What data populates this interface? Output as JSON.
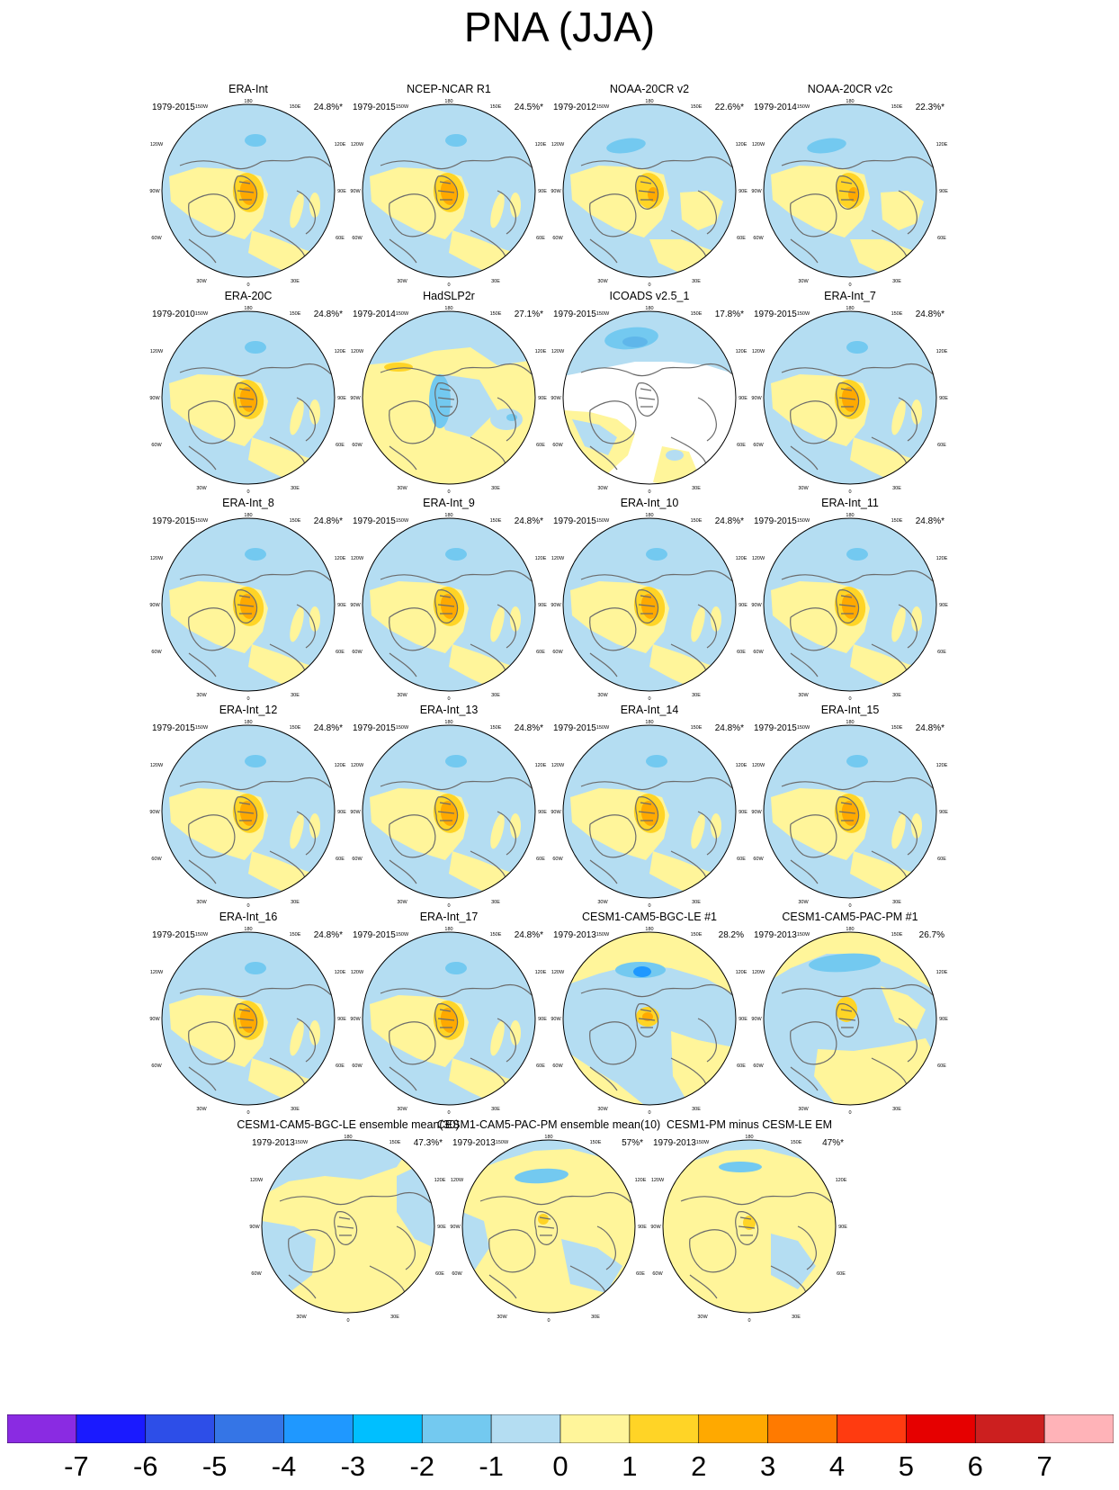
{
  "title": "PNA (JJA)",
  "lon_labels": {
    "north": "180",
    "nnw": "150W",
    "nne": "150E",
    "wnw": "120W",
    "ene": "120E",
    "west": "90W",
    "east": "90E",
    "wsw": "60W",
    "ese": "60E",
    "ssw": "30W",
    "sse": "30E",
    "south": "0"
  },
  "panels": [
    {
      "title": "ERA-Int",
      "period": "1979-2015",
      "variance": "24.8%*",
      "style": "era"
    },
    {
      "title": "NCEP-NCAR R1",
      "period": "1979-2015",
      "variance": "24.5%*",
      "style": "era"
    },
    {
      "title": "NOAA-20CR v2",
      "period": "1979-2012",
      "variance": "22.6%*",
      "style": "noaa"
    },
    {
      "title": "NOAA-20CR v2c",
      "period": "1979-2014",
      "variance": "22.3%*",
      "style": "noaa"
    },
    {
      "title": "ERA-20C",
      "period": "1979-2010",
      "variance": "24.8%*",
      "style": "era"
    },
    {
      "title": "HadSLP2r",
      "period": "1979-2014",
      "variance": "27.1%*",
      "style": "had"
    },
    {
      "title": "ICOADS v2.5_1",
      "period": "1979-2015",
      "variance": "17.8%*",
      "style": "icoads"
    },
    {
      "title": "ERA-Int_7",
      "period": "1979-2015",
      "variance": "24.8%*",
      "style": "era"
    },
    {
      "title": "ERA-Int_8",
      "period": "1979-2015",
      "variance": "24.8%*",
      "style": "era"
    },
    {
      "title": "ERA-Int_9",
      "period": "1979-2015",
      "variance": "24.8%*",
      "style": "era"
    },
    {
      "title": "ERA-Int_10",
      "period": "1979-2015",
      "variance": "24.8%*",
      "style": "era"
    },
    {
      "title": "ERA-Int_11",
      "period": "1979-2015",
      "variance": "24.8%*",
      "style": "era"
    },
    {
      "title": "ERA-Int_12",
      "period": "1979-2015",
      "variance": "24.8%*",
      "style": "era"
    },
    {
      "title": "ERA-Int_13",
      "period": "1979-2015",
      "variance": "24.8%*",
      "style": "era"
    },
    {
      "title": "ERA-Int_14",
      "period": "1979-2015",
      "variance": "24.8%*",
      "style": "era"
    },
    {
      "title": "ERA-Int_15",
      "period": "1979-2015",
      "variance": "24.8%*",
      "style": "era"
    },
    {
      "title": "ERA-Int_16",
      "period": "1979-2015",
      "variance": "24.8%*",
      "style": "era"
    },
    {
      "title": "ERA-Int_17",
      "period": "1979-2015",
      "variance": "24.8%*",
      "style": "era"
    },
    {
      "title": "CESM1-CAM5-BGC-LE #1",
      "period": "1979-2013",
      "variance": "28.2%",
      "style": "cesm_bgc"
    },
    {
      "title": "CESM1-CAM5-PAC-PM #1",
      "period": "1979-2013",
      "variance": "26.7%",
      "style": "cesm_pac"
    },
    {
      "title": "CESM1-CAM5-BGC-LE ensemble mean(30)",
      "period": "1979-2013",
      "variance": "47.3%*",
      "style": "em_le"
    },
    {
      "title": "CESM1-CAM5-PAC-PM ensemble mean(10)",
      "period": "1979-2013",
      "variance": "57%*",
      "style": "em_pm"
    },
    {
      "title": "CESM1-PM minus CESM-LE EM",
      "period": "1979-2013",
      "variance": "47%*",
      "style": "em_diff"
    }
  ],
  "colorbar": {
    "colors": [
      "#8a2be2",
      "#1a1aff",
      "#2d4ee8",
      "#3575e6",
      "#1f98ff",
      "#00bfff",
      "#73c9f0",
      "#b4ddf2",
      "#fff59a",
      "#ffd426",
      "#ffa900",
      "#ff7a00",
      "#ff3b10",
      "#e60000",
      "#cc1f1f",
      "#ffb3b8"
    ],
    "labels": [
      "-7",
      "-6",
      "-5",
      "-4",
      "-3",
      "-2",
      "-1",
      "0",
      "1",
      "2",
      "3",
      "4",
      "5",
      "6",
      "7"
    ]
  },
  "palette": {
    "ocean_light_blue": "#b4ddf2",
    "yellow": "#fff59a",
    "gold": "#ffd426",
    "orange": "#ffa900",
    "blue": "#73c9f0",
    "missing": "#ffffff",
    "coast": "#6b6b6b"
  }
}
